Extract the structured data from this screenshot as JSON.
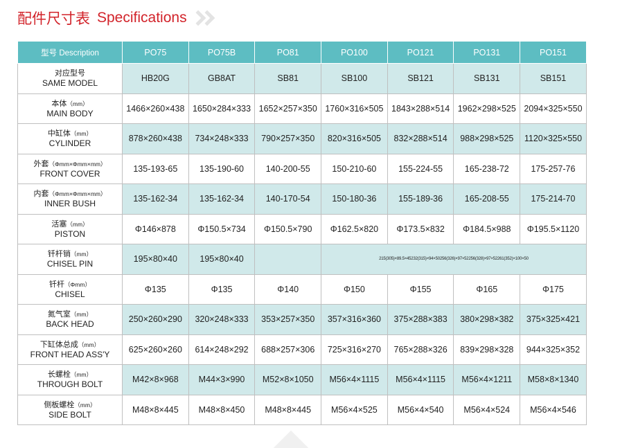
{
  "title": {
    "cn": "配件尺寸表",
    "en": "Specifications"
  },
  "header": {
    "description": "型号 Description",
    "models": [
      "PO75",
      "PO75B",
      "PO81",
      "PO100",
      "PO121",
      "PO131",
      "PO151"
    ]
  },
  "rows": [
    {
      "cn": "对应型号",
      "unit": "",
      "en": "SAME MODEL",
      "values": [
        "HB20G",
        "GB8AT",
        "SB81",
        "SB100",
        "SB121",
        "SB131",
        "SB151"
      ]
    },
    {
      "cn": "本体",
      "unit": "（mm）",
      "en": "MAIN BODY",
      "values": [
        "1466×260×438",
        "1650×284×333",
        "1652×257×350",
        "1760×316×505",
        "1843×288×514",
        "1962×298×525",
        "2094×325×550"
      ]
    },
    {
      "cn": "中缸体",
      "unit": "（mm）",
      "en": "CYLINDER",
      "values": [
        "878×260×438",
        "734×248×333",
        "790×257×350",
        "820×316×505",
        "832×288×514",
        "988×298×525",
        "1120×325×550"
      ]
    },
    {
      "cn": "外套",
      "unit": "（Φmm×Φmm×mm）",
      "en": "FRONT COVER",
      "values": [
        "135-193-65",
        "135-190-60",
        "140-200-55",
        "150-210-60",
        "155-224-55",
        "165-238-72",
        "175-257-76"
      ]
    },
    {
      "cn": "内套",
      "unit": "（Φmm×Φmm×mm）",
      "en": "INNER BUSH",
      "values": [
        "135-162-34",
        "135-162-34",
        "140-170-54",
        "150-180-36",
        "155-189-36",
        "165-208-55",
        "175-214-70"
      ]
    },
    {
      "cn": "活塞",
      "unit": "（mm）",
      "en": "PISTON",
      "values": [
        "Φ146×878",
        "Φ150.5×734",
        "Φ150.5×790",
        "Φ162.5×820",
        "Φ173.5×832",
        "Φ184.5×988",
        "Φ195.5×1120"
      ]
    },
    {
      "cn": "钎杆销",
      "unit": "（mm）",
      "en": "CHISEL PIN",
      "values": [
        "195×80×40",
        "195×80×40",
        "",
        "215(305)×89.5×45232(315)×94×50256(326)×97×52256(328)×97×52261(352)×100×50",
        "",
        "",
        ""
      ]
    },
    {
      "cn": "钎杆",
      "unit": "（Φmm）",
      "en": "CHISEL",
      "values": [
        "Φ135",
        "Φ135",
        "Φ140",
        "Φ150",
        "Φ155",
        "Φ165",
        "Φ175"
      ]
    },
    {
      "cn": "氮气室",
      "unit": "（mm）",
      "en": "BACK HEAD",
      "values": [
        "250×260×290",
        "320×248×333",
        "353×257×350",
        "357×316×360",
        "375×288×383",
        "380×298×382",
        "375×325×421"
      ]
    },
    {
      "cn": "下缸体总成",
      "unit": "（mm）",
      "en": "FRONT HEAD ASS'Y",
      "values": [
        "625×260×260",
        "614×248×292",
        "688×257×306",
        "725×316×270",
        "765×288×326",
        "839×298×328",
        "944×325×352"
      ]
    },
    {
      "cn": "长螺栓",
      "unit": "（mm）",
      "en": "THROUGH BOLT",
      "values": [
        "M42×8×968",
        "M44×3×990",
        "M52×8×1050",
        "M56×4×1115",
        "M56×4×1115",
        "M56×4×1211",
        "M58×8×1340"
      ]
    },
    {
      "cn": "侧板螺栓",
      "unit": "（mm）",
      "en": "SIDE BOLT",
      "values": [
        "M48×8×445",
        "M48×8×450",
        "M48×8×445",
        "M56×4×525",
        "M56×4×540",
        "M56×4×524",
        "M56×4×546"
      ]
    }
  ]
}
